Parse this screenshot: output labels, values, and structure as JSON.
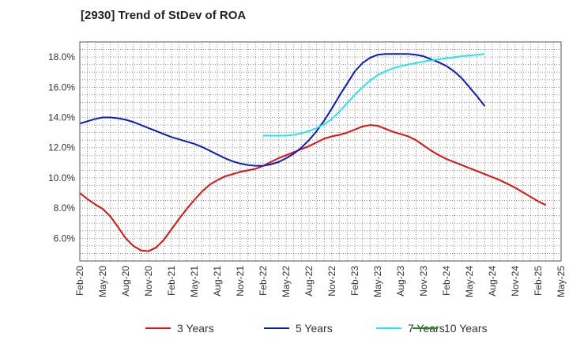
{
  "chart_data": {
    "type": "line",
    "title": "[2930]  Trend of StDev of ROA",
    "xlabel": "",
    "ylabel": "",
    "x_start": "Feb-20",
    "x_end": "May-25",
    "y_ticks": [
      "6.0%",
      "8.0%",
      "10.0%",
      "12.0%",
      "14.0%",
      "16.0%",
      "18.0%"
    ],
    "y_tick_values": [
      6,
      8,
      10,
      12,
      14,
      16,
      18
    ],
    "ylim": [
      4.5,
      19.0
    ],
    "x_ticks": [
      "Feb-20",
      "May-20",
      "Aug-20",
      "Nov-20",
      "Feb-21",
      "May-21",
      "Aug-21",
      "Nov-21",
      "Feb-22",
      "May-22",
      "Aug-22",
      "Nov-22",
      "Feb-23",
      "May-23",
      "Aug-23",
      "Nov-23",
      "Feb-24",
      "May-24",
      "Aug-24",
      "Nov-24",
      "Feb-25",
      "May-25"
    ],
    "grid": true,
    "legend_position": "bottom",
    "series": [
      {
        "name": "3 Years",
        "color": "#dd1111",
        "start_month_index": 0,
        "values": [
          9.0,
          8.6,
          8.25,
          7.95,
          7.45,
          6.75,
          6.0,
          5.5,
          5.2,
          5.15,
          5.4,
          5.9,
          6.6,
          7.3,
          7.95,
          8.55,
          9.1,
          9.55,
          9.85,
          10.1,
          10.25,
          10.4,
          10.5,
          10.6,
          10.8,
          11.05,
          11.3,
          11.5,
          11.7,
          11.9,
          12.1,
          12.35,
          12.6,
          12.75,
          12.85,
          13.0,
          13.2,
          13.4,
          13.5,
          13.45,
          13.25,
          13.05,
          12.9,
          12.75,
          12.5,
          12.15,
          11.8,
          11.5,
          11.25,
          11.05,
          10.85,
          10.65,
          10.45,
          10.25,
          10.05,
          9.85,
          9.6,
          9.35,
          9.05,
          8.75,
          8.45,
          8.2
        ]
      },
      {
        "name": "5 Years",
        "color": "#0a1bbf",
        "start_month_index": 0,
        "values": [
          13.6,
          13.75,
          13.9,
          14.0,
          14.0,
          13.95,
          13.85,
          13.7,
          13.5,
          13.3,
          13.1,
          12.9,
          12.7,
          12.55,
          12.4,
          12.25,
          12.05,
          11.8,
          11.55,
          11.3,
          11.1,
          10.95,
          10.85,
          10.8,
          10.8,
          10.9,
          11.05,
          11.3,
          11.6,
          12.0,
          12.5,
          13.1,
          13.8,
          14.6,
          15.45,
          16.25,
          17.05,
          17.6,
          17.95,
          18.15,
          18.2,
          18.2,
          18.2,
          18.2,
          18.15,
          18.05,
          17.85,
          17.65,
          17.4,
          17.05,
          16.6,
          16.0,
          15.4,
          14.75
        ]
      },
      {
        "name": "7 Years",
        "color": "#22e6ee",
        "start_month_index": 24,
        "values": [
          12.8,
          12.8,
          12.8,
          12.8,
          12.85,
          12.95,
          13.1,
          13.3,
          13.55,
          13.9,
          14.4,
          14.95,
          15.5,
          16.0,
          16.45,
          16.8,
          17.05,
          17.25,
          17.4,
          17.5,
          17.6,
          17.7,
          17.78,
          17.85,
          17.92,
          17.98,
          18.05,
          18.1,
          18.15,
          18.2
        ]
      },
      {
        "name": "10 Years",
        "color": "#1a8c1a",
        "start_month_index": 0,
        "values": []
      }
    ]
  }
}
